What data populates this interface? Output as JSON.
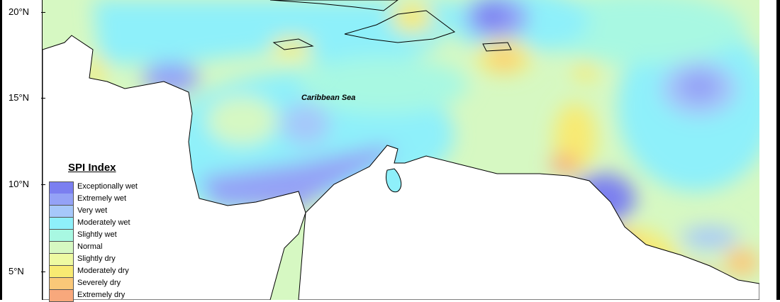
{
  "map": {
    "sea_label": "Caribbean Sea",
    "latitude_labels": [
      "20°N",
      "15°N",
      "10°N",
      "5°N"
    ]
  },
  "legend": {
    "title": "SPI Index",
    "items": [
      {
        "label": "Exceptionally wet",
        "color": "#7b7ff0"
      },
      {
        "label": "Extremely wet",
        "color": "#94a2f6"
      },
      {
        "label": "Very wet",
        "color": "#a6c8fa"
      },
      {
        "label": "Moderately wet",
        "color": "#8ef0fa"
      },
      {
        "label": "Slightly wet",
        "color": "#a8f8e2"
      },
      {
        "label": "Normal",
        "color": "#d6f8c2"
      },
      {
        "label": "Slightly dry",
        "color": "#eefaa2"
      },
      {
        "label": "Moderately dry",
        "color": "#f8ea72"
      },
      {
        "label": "Severely dry",
        "color": "#fac878"
      },
      {
        "label": "Extremely dry",
        "color": "#f8a87c"
      }
    ]
  }
}
